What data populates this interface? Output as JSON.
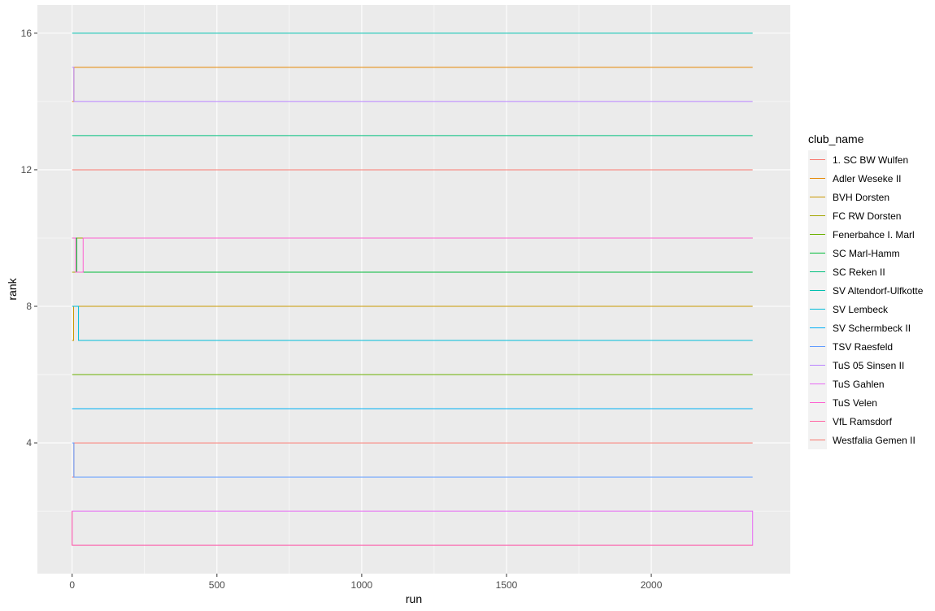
{
  "chart_data": {
    "type": "line",
    "title": "",
    "xlabel": "run",
    "ylabel": "rank",
    "xlim": [
      -120,
      2480
    ],
    "ylim": [
      0.17,
      16.83
    ],
    "x_ticks": [
      0,
      500,
      1000,
      1500,
      2000
    ],
    "y_ticks": [
      4,
      8,
      12,
      16
    ],
    "grid": true,
    "legend_title": "club_name",
    "legend_position": "right",
    "series": [
      {
        "name": "1. SC BW Wulfen",
        "color": "#F8766D",
        "points": [
          [
            0,
            3
          ],
          [
            6,
            3
          ],
          [
            6,
            4
          ],
          [
            2350,
            4
          ]
        ]
      },
      {
        "name": "Adler Weseke II",
        "color": "#E58700",
        "points": [
          [
            0,
            14
          ],
          [
            6,
            14
          ],
          [
            6,
            15
          ],
          [
            2350,
            15
          ]
        ]
      },
      {
        "name": "BVH Dorsten",
        "color": "#C99800",
        "points": [
          [
            0,
            7
          ],
          [
            5,
            7
          ],
          [
            5,
            8
          ],
          [
            2350,
            8
          ]
        ]
      },
      {
        "name": "FC RW Dorsten",
        "color": "#A3A500",
        "points": [
          [
            0,
            9
          ],
          [
            16,
            9
          ],
          [
            16,
            10
          ],
          [
            2350,
            10
          ]
        ]
      },
      {
        "name": "Fenerbahce I. Marl",
        "color": "#6BB100",
        "points": [
          [
            0,
            6
          ],
          [
            2350,
            6
          ]
        ]
      },
      {
        "name": "SC Marl-Hamm",
        "color": "#00BA38",
        "points": [
          [
            0,
            10
          ],
          [
            16,
            10
          ],
          [
            16,
            9
          ],
          [
            2350,
            9
          ]
        ]
      },
      {
        "name": "SC Reken II",
        "color": "#00BF7D",
        "points": [
          [
            0,
            13
          ],
          [
            2350,
            13
          ]
        ]
      },
      {
        "name": "SV Altendorf-Ulfkotte",
        "color": "#00C0AF",
        "points": [
          [
            0,
            16
          ],
          [
            2350,
            16
          ]
        ]
      },
      {
        "name": "SV Lembeck",
        "color": "#00BCD8",
        "points": [
          [
            0,
            8
          ],
          [
            22,
            8
          ],
          [
            22,
            7
          ],
          [
            2350,
            7
          ]
        ]
      },
      {
        "name": "SV Schermbeck II",
        "color": "#00B0F6",
        "points": [
          [
            0,
            5
          ],
          [
            2350,
            5
          ]
        ]
      },
      {
        "name": "TSV Raesfeld",
        "color": "#619CFF",
        "points": [
          [
            0,
            4
          ],
          [
            6,
            4
          ],
          [
            6,
            3
          ],
          [
            2350,
            3
          ]
        ]
      },
      {
        "name": "TuS 05 Sinsen II",
        "color": "#B983FF",
        "points": [
          [
            0,
            15
          ],
          [
            6,
            15
          ],
          [
            6,
            14
          ],
          [
            2350,
            14
          ]
        ]
      },
      {
        "name": "TuS Gahlen",
        "color": "#E76BF3",
        "points": [
          [
            0,
            1
          ],
          [
            2350,
            1
          ],
          [
            2350,
            2
          ],
          [
            0,
            2
          ],
          [
            0,
            1
          ]
        ]
      },
      {
        "name": "TuS Velen",
        "color": "#FD61D1",
        "points": [
          [
            0,
            10
          ],
          [
            12,
            10
          ],
          [
            12,
            9
          ],
          [
            38,
            9
          ],
          [
            38,
            10
          ],
          [
            2350,
            10
          ]
        ]
      },
      {
        "name": "VfL Ramsdorf",
        "color": "#FF67A4",
        "points": [
          [
            0,
            2
          ],
          [
            0,
            1
          ],
          [
            2350,
            1
          ]
        ]
      },
      {
        "name": "Westfalia Gemen II",
        "color": "#F8766D",
        "points": [
          [
            0,
            12
          ],
          [
            2350,
            12
          ]
        ]
      }
    ]
  }
}
